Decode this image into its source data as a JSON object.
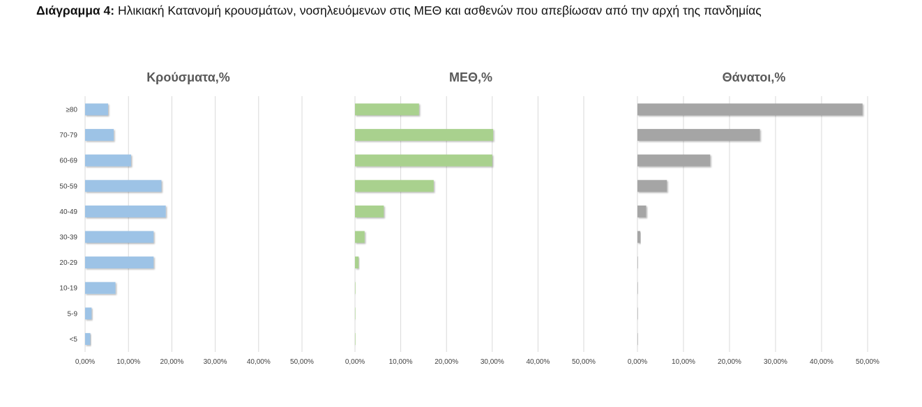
{
  "caption": {
    "lead": "Διάγραμμα 4",
    "separator": ":",
    "text": " Ηλικιακή Κατανομή κρουσμάτων, νοσηλευόμενων στις ΜΕΘ και ασθενών που απεβίωσαν από την αρχή της πανδημίας"
  },
  "chart_data": [
    {
      "type": "bar",
      "orientation": "horizontal",
      "title": "Κρούσματα,%",
      "categories": [
        "≥80",
        "70-79",
        "60-69",
        "50-59",
        "40-49",
        "30-39",
        "20-29",
        "10-19",
        "5-9",
        "<5"
      ],
      "values": [
        5.3,
        6.6,
        10.6,
        17.6,
        18.6,
        15.8,
        15.8,
        7.0,
        1.5,
        1.2
      ],
      "xlim": [
        0,
        50
      ],
      "xticks": [
        "0,00%",
        "10,00%",
        "20,00%",
        "30,00%",
        "40,00%",
        "50,00%"
      ],
      "color": "#9dc3e6",
      "grid": true
    },
    {
      "type": "bar",
      "orientation": "horizontal",
      "title": "ΜΕΘ,%",
      "categories": [
        "≥80",
        "70-79",
        "60-69",
        "50-59",
        "40-49",
        "30-39",
        "20-29",
        "10-19",
        "5-9",
        "<5"
      ],
      "values": [
        14.0,
        30.2,
        30.0,
        17.2,
        6.3,
        2.1,
        0.8,
        0.1,
        0.0,
        0.1
      ],
      "xlim": [
        0,
        50
      ],
      "xticks": [
        "0,00%",
        "10,00%",
        "20,00%",
        "30,00%",
        "40,00%",
        "50,00%"
      ],
      "color": "#a9d18e",
      "grid": true
    },
    {
      "type": "bar",
      "orientation": "horizontal",
      "title": "Θάνατοι,%",
      "categories": [
        "≥80",
        "70-79",
        "60-69",
        "50-59",
        "40-49",
        "30-39",
        "20-29",
        "10-19",
        "5-9",
        "<5"
      ],
      "values": [
        48.9,
        26.6,
        15.8,
        6.4,
        1.9,
        0.6,
        0.1,
        0.05,
        0.0,
        0.05
      ],
      "xlim": [
        0,
        50
      ],
      "xticks": [
        "0,00%",
        "10,00%",
        "20,00%",
        "30,00%",
        "40,00%",
        "50,00%"
      ],
      "color": "#a5a5a5",
      "grid": true
    }
  ]
}
